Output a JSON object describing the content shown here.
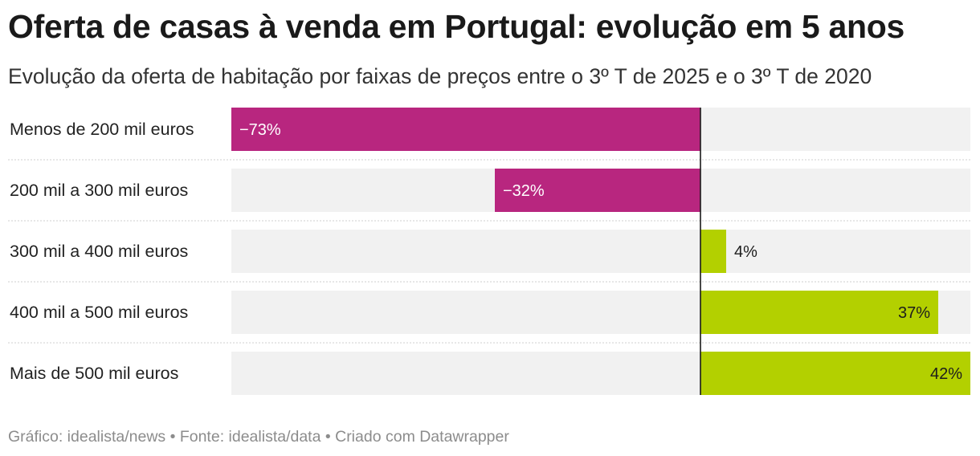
{
  "header": {
    "title": "Oferta de casas à venda em Portugal: evolução em 5 anos",
    "subtitle": "Evolução da oferta de habitação por faixas de preços entre o 3º T de 2025 e o 3º T de 2020"
  },
  "chart_data": {
    "type": "bar",
    "orientation": "horizontal",
    "categories": [
      "Menos de 200 mil euros",
      "200 mil a 300 mil euros",
      "300 mil a 400 mil euros",
      "400 mil a 500 mil euros",
      "Mais de 500 mil euros"
    ],
    "values": [
      -73,
      -32,
      4,
      37,
      42
    ],
    "value_labels": [
      "−73%",
      "−32%",
      "4%",
      "37%",
      "42%"
    ],
    "xlim": [
      -73,
      42
    ],
    "colors": {
      "negative": "#b8267f",
      "positive": "#b3d000",
      "track": "#f1f1f1",
      "zero_line": "#1a1a1a",
      "label_on_negative": "#ffffff",
      "label_on_positive": "#1d1d1d"
    }
  },
  "footer": {
    "credit": "Gráfico: idealista/news • Fonte: idealista/data • Criado com Datawrapper"
  }
}
